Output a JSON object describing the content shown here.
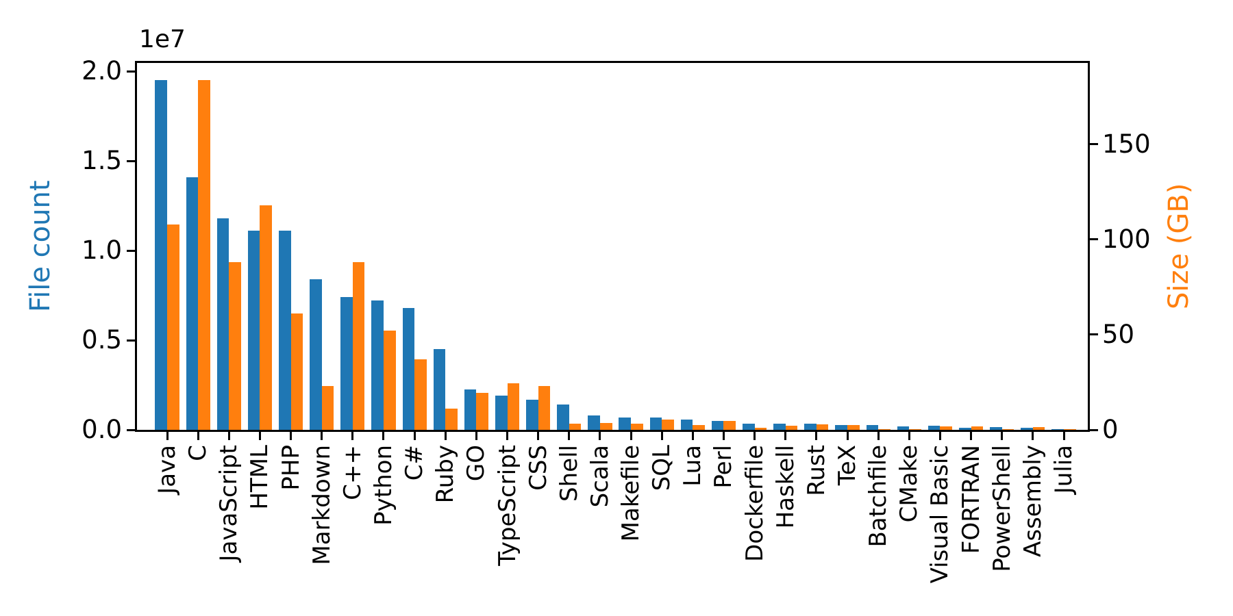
{
  "chart_data": {
    "type": "bar",
    "title": "",
    "xlabel": "",
    "ylabel_left": "File count",
    "ylabel_right": "Size (GB)",
    "offset_text": "1e7",
    "grid": false,
    "legend": "none",
    "categories": [
      "Java",
      "C",
      "JavaScript",
      "HTML",
      "PHP",
      "Markdown",
      "C++",
      "Python",
      "C#",
      "Ruby",
      "GO",
      "TypeScript",
      "CSS",
      "Shell",
      "Scala",
      "Makefile",
      "SQL",
      "Lua",
      "Perl",
      "Dockerfile",
      "Haskell",
      "Rust",
      "TeX",
      "Batchfile",
      "CMake",
      "Visual Basic",
      "FORTRAN",
      "PowerShell",
      "Assembly",
      "Julia"
    ],
    "series": [
      {
        "name": "File count",
        "axis": "left",
        "color": "#1f77b4",
        "values": [
          19500000,
          14100000,
          11800000,
          11100000,
          11100000,
          8400000,
          7400000,
          7200000,
          6800000,
          4500000,
          2250000,
          1900000,
          1700000,
          1400000,
          800000,
          700000,
          700000,
          570000,
          500000,
          360000,
          340000,
          360000,
          270000,
          270000,
          190000,
          230000,
          120000,
          140000,
          100000,
          40000
        ]
      },
      {
        "name": "Size (GB)",
        "axis": "right",
        "color": "#ff7f0e",
        "values": [
          108,
          184,
          88,
          118,
          61,
          23,
          88,
          52,
          37,
          11,
          19.5,
          24.5,
          23,
          3.2,
          3.6,
          3.2,
          5.4,
          2.5,
          4.7,
          1.1,
          2.2,
          2.9,
          2.5,
          0.4,
          0.4,
          1.8,
          1.8,
          0.5,
          1.4,
          0.2
        ]
      }
    ],
    "left_axis": {
      "label": "File count",
      "color": "#1f77b4",
      "tick_labels": [
        "0.0",
        "0.5",
        "1.0",
        "1.5",
        "2.0"
      ],
      "tick_values": [
        0,
        5000000,
        10000000,
        15000000,
        20000000
      ],
      "ylim": [
        0,
        20460000
      ]
    },
    "right_axis": {
      "label": "Size (GB)",
      "color": "#ff7f0e",
      "tick_labels": [
        "0",
        "50",
        "100",
        "150"
      ],
      "tick_values": [
        0,
        50,
        100,
        150
      ],
      "ylim": [
        0,
        192.8
      ]
    }
  }
}
